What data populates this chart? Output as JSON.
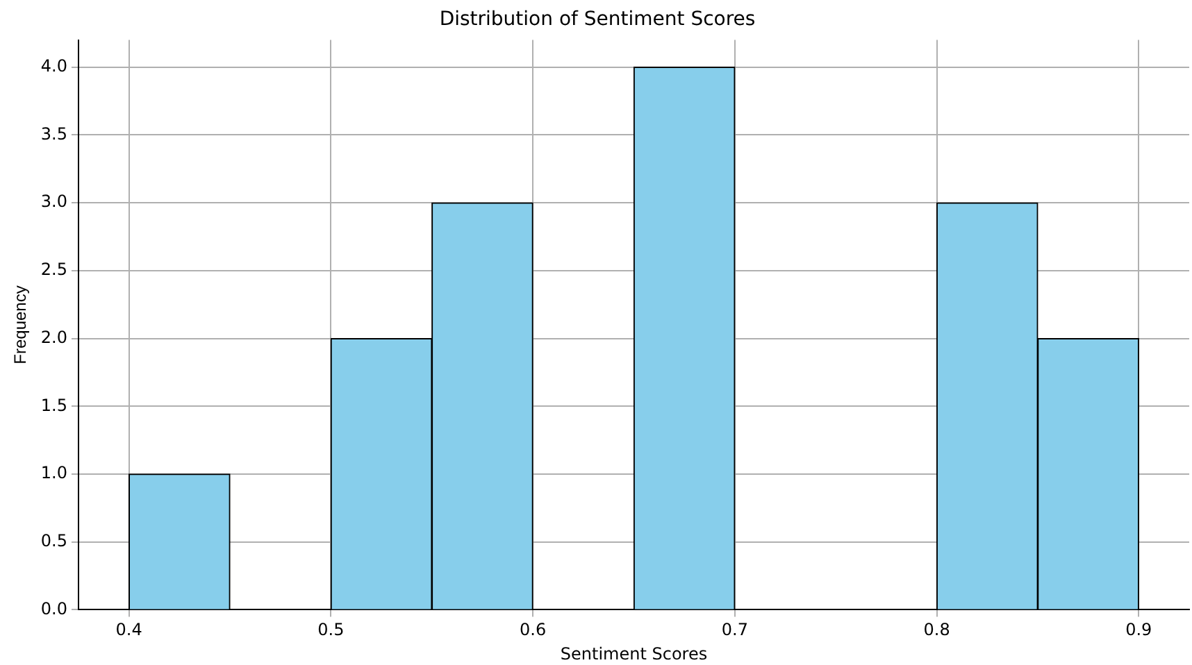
{
  "chart_data": {
    "type": "histogram",
    "title": "Distribution of Sentiment Scores",
    "xlabel": "Sentiment Scores",
    "ylabel": "Frequency",
    "bins": [
      0.4,
      0.45,
      0.5,
      0.55,
      0.6,
      0.65,
      0.7,
      0.75,
      0.8,
      0.85,
      0.9
    ],
    "values": [
      1,
      0,
      2,
      3,
      0,
      4,
      0,
      0,
      3,
      2
    ],
    "color": "#87ceeb",
    "xlim": [
      0.375,
      0.925
    ],
    "xticks": [
      0.4,
      0.5,
      0.6,
      0.7,
      0.8,
      0.9
    ],
    "ylim": [
      0,
      4.2
    ],
    "yticks": [
      {
        "value": 0,
        "label": "0.0"
      },
      {
        "value": 0.5,
        "label": "0.5"
      },
      {
        "value": 1,
        "label": "1.0"
      },
      {
        "value": 1.5,
        "label": "1.5"
      },
      {
        "value": 2,
        "label": "2.0"
      },
      {
        "value": 2.5,
        "label": "2.5"
      },
      {
        "value": 3,
        "label": "3.0"
      },
      {
        "value": 3.5,
        "label": "3.5"
      },
      {
        "value": 4,
        "label": "4.0"
      }
    ],
    "grid": true,
    "legend": false
  }
}
